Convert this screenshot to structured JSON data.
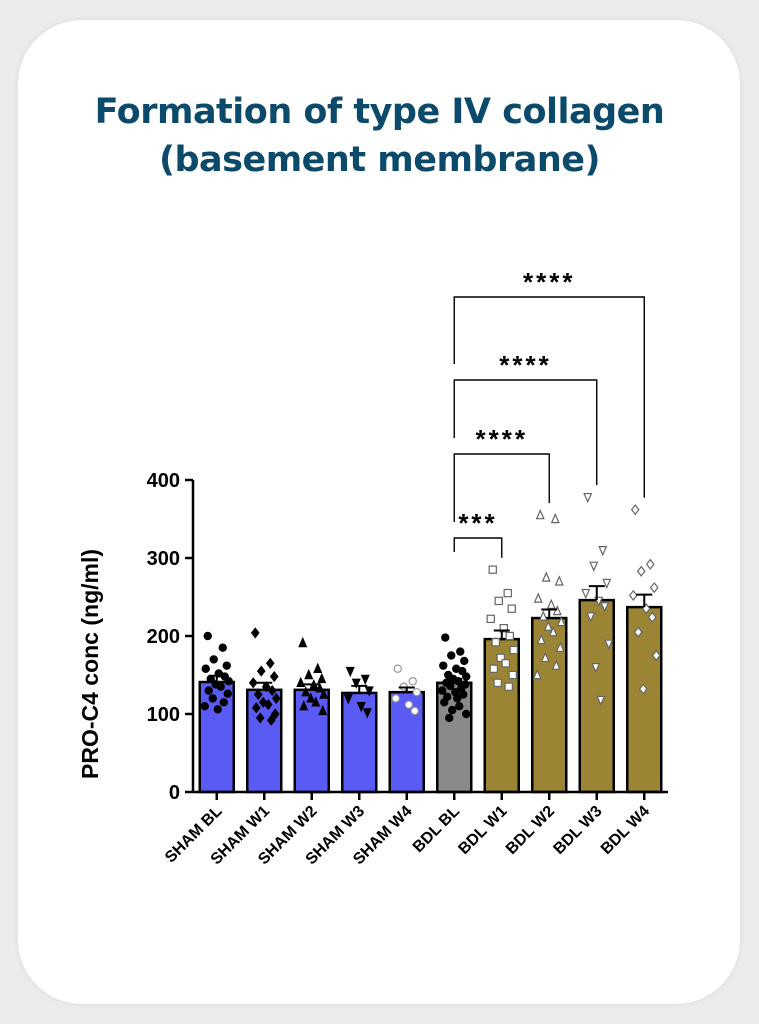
{
  "title": {
    "line1": "Formation of type IV collagen",
    "line2": "(basement membrane)"
  },
  "colors": {
    "title": "#0b4a6b",
    "sham_bar": "#5a5af5",
    "bdl_bl_bar": "#8a8a8a",
    "bdl_bar": "#9b8534",
    "outline": "#000000"
  },
  "chart_data": {
    "type": "bar",
    "ylabel": "PRO-C4 conc (ng/ml)",
    "ylim": [
      0,
      400
    ],
    "yticks": [
      0,
      100,
      200,
      300,
      400
    ],
    "categories": [
      "SHAM BL",
      "SHAM W1",
      "SHAM W2",
      "SHAM W3",
      "SHAM W4",
      "BDL BL",
      "BDL W1",
      "BDL W2",
      "BDL W3",
      "BDL W4"
    ],
    "values": [
      141,
      131,
      131,
      127,
      128,
      140,
      196,
      223,
      246,
      237
    ],
    "sem": [
      8,
      9,
      7,
      9,
      6,
      5,
      11,
      11,
      18,
      16
    ],
    "bar_colors": [
      "#5a5af5",
      "#5a5af5",
      "#5a5af5",
      "#5a5af5",
      "#5a5af5",
      "#8a8a8a",
      "#9b8534",
      "#9b8534",
      "#9b8534",
      "#9b8534"
    ],
    "point_markers": [
      "circle",
      "diamond",
      "triangle-up",
      "triangle-down",
      "circle-open",
      "circle",
      "square-open",
      "triangle-up-open",
      "triangle-down-open",
      "diamond-open"
    ],
    "points": [
      [
        200,
        185,
        170,
        162,
        158,
        152,
        148,
        145,
        142,
        138,
        135,
        130,
        126,
        120,
        115,
        110,
        106
      ],
      [
        204,
        165,
        155,
        148,
        140,
        135,
        130,
        125,
        120,
        115,
        112,
        108,
        100,
        95,
        92
      ],
      [
        191,
        158,
        150,
        145,
        140,
        137,
        133,
        128,
        125,
        120,
        115,
        110,
        104
      ],
      [
        155,
        145,
        140,
        130,
        120,
        110,
        102
      ],
      [
        158,
        142,
        135,
        128,
        120,
        112,
        104
      ],
      [
        198,
        180,
        175,
        168,
        162,
        158,
        155,
        150,
        148,
        145,
        142,
        140,
        138,
        136,
        133,
        130,
        128,
        125,
        122,
        120,
        115,
        110,
        105,
        100,
        95
      ],
      [
        285,
        255,
        245,
        235,
        222,
        210,
        200,
        192,
        182,
        172,
        165,
        158,
        150,
        140,
        135
      ],
      [
        355,
        350,
        275,
        270,
        248,
        240,
        232,
        225,
        218,
        212,
        205,
        195,
        185,
        172,
        162,
        150
      ],
      [
        378,
        310,
        290,
        268,
        255,
        245,
        238,
        225,
        190,
        160,
        118
      ],
      [
        362,
        292,
        283,
        262,
        252,
        235,
        224,
        205,
        175,
        132
      ]
    ],
    "comparisons": [
      {
        "from": "BDL BL",
        "to": "BDL W1",
        "label": "***"
      },
      {
        "from": "BDL BL",
        "to": "BDL W2",
        "label": "****"
      },
      {
        "from": "BDL BL",
        "to": "BDL W3",
        "label": "****"
      },
      {
        "from": "BDL BL",
        "to": "BDL W4",
        "label": "****"
      }
    ]
  }
}
